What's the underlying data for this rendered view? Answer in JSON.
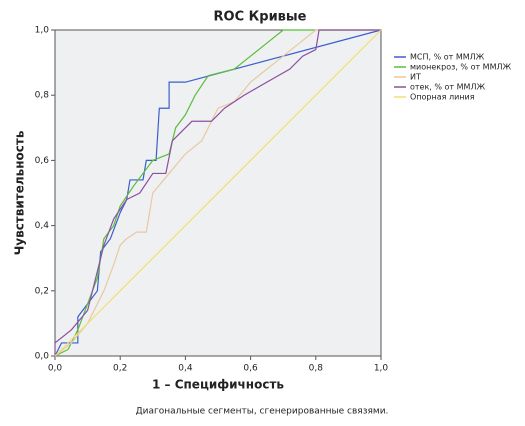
{
  "chart_data": {
    "type": "line",
    "title": "ROC Кривые",
    "x_label": "1 – Специфичность",
    "y_label": "Чувствительность",
    "footnote": "Диагональные сегменты, сгенерированные связями.",
    "xlim": [
      0,
      1
    ],
    "ylim": [
      0,
      1
    ],
    "xticks": [
      {
        "value": 0,
        "label": "0,0"
      },
      {
        "value": 0.2,
        "label": "0,2"
      },
      {
        "value": 0.4,
        "label": "0,4"
      },
      {
        "value": 0.6,
        "label": "0,6"
      },
      {
        "value": 0.8,
        "label": "0,8"
      },
      {
        "value": 1,
        "label": "1,0"
      }
    ],
    "yticks": [
      {
        "value": 0,
        "label": "0,0"
      },
      {
        "value": 0.2,
        "label": "0,2"
      },
      {
        "value": 0.4,
        "label": "0,4"
      },
      {
        "value": 0.6,
        "label": "0,6"
      },
      {
        "value": 0.8,
        "label": "0,8"
      },
      {
        "value": 1,
        "label": "1,0"
      }
    ],
    "series": [
      {
        "name": "МСП, % от ММЛЖ",
        "color": "#3a5fcd",
        "x": [
          0,
          0.02,
          0.07,
          0.07,
          0.1,
          0.13,
          0.14,
          0.17,
          0.2,
          0.22,
          0.23,
          0.27,
          0.28,
          0.31,
          0.32,
          0.35,
          0.35,
          0.4,
          1
        ],
        "values": [
          0,
          0.04,
          0.04,
          0.12,
          0.16,
          0.2,
          0.32,
          0.36,
          0.44,
          0.48,
          0.54,
          0.54,
          0.6,
          0.6,
          0.76,
          0.76,
          0.84,
          0.84,
          1
        ]
      },
      {
        "name": "мионекроз, % от ММЛЖ",
        "color": "#5bbd3a",
        "x": [
          0,
          0.04,
          0.07,
          0.1,
          0.13,
          0.15,
          0.18,
          0.2,
          0.24,
          0.27,
          0.3,
          0.35,
          0.37,
          0.4,
          0.43,
          0.47,
          0.55,
          0.6,
          0.65,
          0.7,
          1
        ],
        "values": [
          0,
          0.02,
          0.08,
          0.16,
          0.24,
          0.36,
          0.4,
          0.46,
          0.52,
          0.56,
          0.6,
          0.62,
          0.7,
          0.74,
          0.8,
          0.86,
          0.88,
          0.92,
          0.96,
          1,
          1
        ]
      },
      {
        "name": "ИТ",
        "color": "#e8c9a0",
        "x": [
          0,
          0.05,
          0.1,
          0.15,
          0.18,
          0.2,
          0.22,
          0.25,
          0.28,
          0.3,
          0.35,
          0.4,
          0.45,
          0.5,
          0.55,
          0.6,
          0.65,
          0.7,
          0.75,
          0.8,
          1
        ],
        "values": [
          0,
          0.04,
          0.1,
          0.2,
          0.28,
          0.34,
          0.36,
          0.38,
          0.38,
          0.5,
          0.56,
          0.62,
          0.66,
          0.76,
          0.78,
          0.84,
          0.88,
          0.92,
          0.96,
          1,
          1
        ]
      },
      {
        "name": "отек, % от ММЛЖ",
        "color": "#8d4fa0",
        "x": [
          0,
          0,
          0.05,
          0.1,
          0.13,
          0.15,
          0.18,
          0.22,
          0.26,
          0.3,
          0.34,
          0.36,
          0.42,
          0.48,
          0.52,
          0.58,
          0.65,
          0.72,
          0.76,
          0.8,
          0.81,
          1
        ],
        "values": [
          0,
          0.04,
          0.08,
          0.14,
          0.26,
          0.34,
          0.42,
          0.48,
          0.5,
          0.56,
          0.56,
          0.66,
          0.72,
          0.72,
          0.76,
          0.8,
          0.84,
          0.88,
          0.92,
          0.94,
          1,
          1
        ]
      },
      {
        "name": "Опорная линия",
        "color": "#f2df6e",
        "x": [
          0,
          1
        ],
        "values": [
          0,
          1
        ]
      }
    ]
  }
}
